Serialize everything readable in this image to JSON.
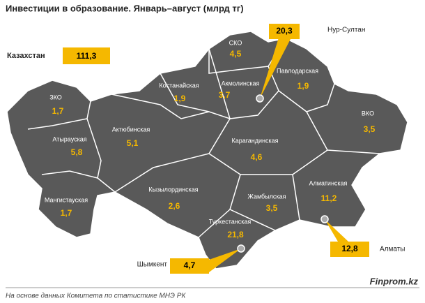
{
  "title": "Инвестиции в образование. Январь–август (млрд тг)",
  "total": {
    "label": "Казахстан",
    "value": "111,3"
  },
  "regions": [
    {
      "name": "ЗКО",
      "value": "1,7"
    },
    {
      "name": "Атырауская",
      "value": "5,8"
    },
    {
      "name": "Мангистауская",
      "value": "1,7"
    },
    {
      "name": "Актюбинская",
      "value": "5,1"
    },
    {
      "name": "Костанайская",
      "value": "1,9"
    },
    {
      "name": "СКО",
      "value": "4,5"
    },
    {
      "name": "Акмолинская",
      "value": "3,7"
    },
    {
      "name": "Павлодарская",
      "value": "1,9"
    },
    {
      "name": "ВКО",
      "value": "3,5"
    },
    {
      "name": "Карагандинская",
      "value": "4,6"
    },
    {
      "name": "Кызылординская",
      "value": "2,6"
    },
    {
      "name": "Жамбылская",
      "value": "3,5"
    },
    {
      "name": "Алматинская",
      "value": "11,2"
    },
    {
      "name": "Туркестанская",
      "value": "21,8"
    }
  ],
  "cities": [
    {
      "name": "Нур-Султан",
      "value": "20,3"
    },
    {
      "name": "Алматы",
      "value": "12,8"
    },
    {
      "name": "Шымкент",
      "value": "4,7"
    }
  ],
  "source": "На основе данных Комитета по статистике МНЭ РК",
  "brand": "Finprom.kz"
}
